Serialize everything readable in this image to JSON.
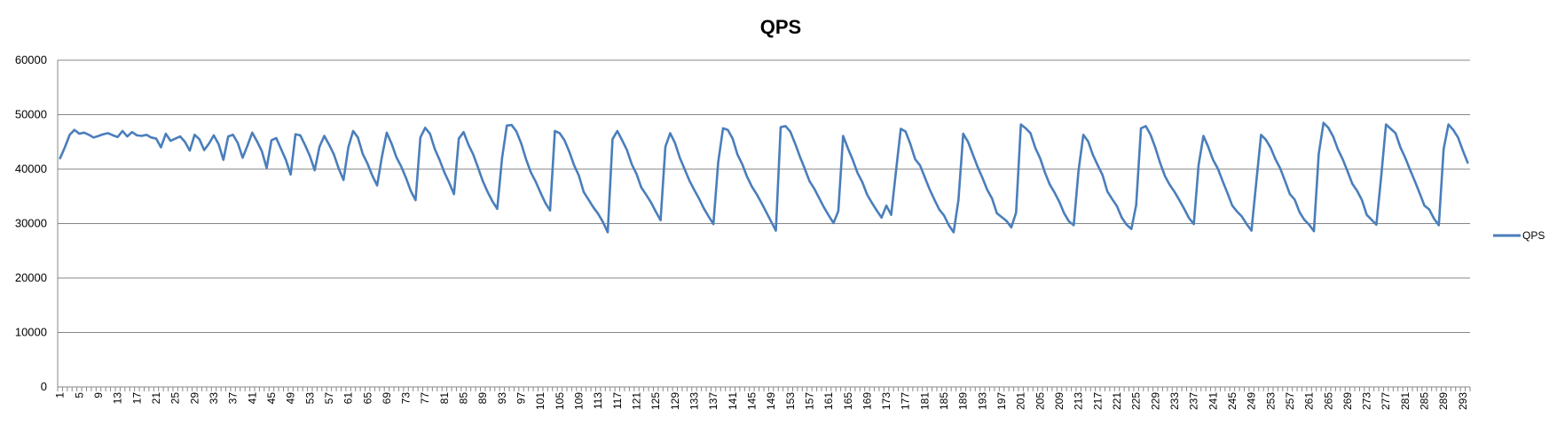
{
  "chart_data": {
    "type": "line",
    "title": "QPS",
    "xlabel": "",
    "ylabel": "",
    "ylim": [
      0,
      60000
    ],
    "yticks": [
      0,
      10000,
      20000,
      30000,
      40000,
      50000,
      60000
    ],
    "x_range": [
      1,
      294
    ],
    "x_tick_labels_every": 4,
    "grid": true,
    "legend_position": "right",
    "series": [
      {
        "name": "QPS",
        "color": "#4a7ebb",
        "x": [
          1,
          2,
          3,
          4,
          5,
          6,
          7,
          8,
          9,
          10,
          11,
          12,
          13,
          14,
          15,
          16,
          17,
          18,
          19,
          20,
          21,
          22,
          23,
          24,
          25,
          26,
          27,
          28,
          29,
          30,
          31,
          32,
          33,
          34,
          35,
          36,
          37,
          38,
          39,
          40,
          41,
          42,
          43,
          44,
          45,
          46,
          47,
          48,
          49,
          50,
          51,
          52,
          53,
          54,
          55,
          56,
          57,
          58,
          59,
          60,
          61,
          62,
          63,
          64,
          65,
          66,
          67,
          68,
          69,
          70,
          71,
          72,
          73,
          74,
          75,
          76,
          77,
          78,
          79,
          80,
          81,
          82,
          83,
          84,
          85,
          86,
          87,
          88,
          89,
          90,
          91,
          92,
          93,
          94,
          95,
          96,
          97,
          98,
          99,
          100,
          101,
          102,
          103,
          104,
          105,
          106,
          107,
          108,
          109,
          110,
          111,
          112,
          113,
          114,
          115,
          116,
          117,
          118,
          119,
          120,
          121,
          122,
          123,
          124,
          125,
          126,
          127,
          128,
          129,
          130,
          131,
          132,
          133,
          134,
          135,
          136,
          137,
          138,
          139,
          140,
          141,
          142,
          143,
          144,
          145,
          146,
          147,
          148,
          149,
          150,
          151,
          152,
          153,
          154,
          155,
          156,
          157,
          158,
          159,
          160,
          161,
          162,
          163,
          164,
          165,
          166,
          167,
          168,
          169,
          170,
          171,
          172,
          173,
          174,
          175,
          176,
          177,
          178,
          179,
          180,
          181,
          182,
          183,
          184,
          185,
          186,
          187,
          188,
          189,
          190,
          191,
          192,
          193,
          194,
          195,
          196,
          197,
          198,
          199,
          200,
          201,
          202,
          203,
          204,
          205,
          206,
          207,
          208,
          209,
          210,
          211,
          212,
          213,
          214,
          215,
          216,
          217,
          218,
          219,
          220,
          221,
          222,
          223,
          224,
          225,
          226,
          227,
          228,
          229,
          230,
          231,
          232,
          233,
          234,
          235,
          236,
          237,
          238,
          239,
          240,
          241,
          242,
          243,
          244,
          245,
          246,
          247,
          248,
          249,
          250,
          251,
          252,
          253,
          254,
          255,
          256,
          257,
          258,
          259,
          260,
          261,
          262,
          263,
          264,
          265,
          266,
          267,
          268,
          269,
          270,
          271,
          272,
          273,
          274,
          275,
          276,
          277,
          278,
          279,
          280,
          281,
          282,
          283,
          284,
          285,
          286,
          287,
          288,
          289,
          290,
          291,
          292,
          293,
          294
        ],
        "values": [
          42000,
          44000,
          46300,
          47200,
          46500,
          46700,
          46300,
          45800,
          46100,
          46400,
          46600,
          46200,
          45900,
          47000,
          46000,
          46800,
          46200,
          46100,
          46300,
          45800,
          45600,
          44000,
          46500,
          45200,
          45600,
          46000,
          45000,
          43400,
          46300,
          45500,
          43500,
          44700,
          46200,
          44600,
          41700,
          46000,
          46300,
          44800,
          42100,
          44300,
          46700,
          45100,
          43300,
          40200,
          45300,
          45700,
          43700,
          41700,
          39000,
          46400,
          46200,
          44400,
          42400,
          39800,
          44100,
          46100,
          44500,
          42700,
          40100,
          38000,
          44000,
          47000,
          45800,
          42800,
          41000,
          38800,
          37000,
          42300,
          46700,
          44700,
          42200,
          40500,
          38400,
          36000,
          34300,
          45800,
          47600,
          46500,
          43700,
          41700,
          39400,
          37500,
          35400,
          45600,
          46800,
          44500,
          42700,
          40300,
          37800,
          35800,
          34100,
          32700,
          42000,
          48000,
          48100,
          46900,
          44700,
          41800,
          39400,
          37700,
          35700,
          33800,
          32400,
          47000,
          46600,
          45300,
          43200,
          40700,
          38800,
          35800,
          34400,
          33000,
          31800,
          30300,
          28400,
          45500,
          47000,
          45300,
          43500,
          40900,
          39100,
          36600,
          35300,
          33900,
          32200,
          30600,
          44100,
          46600,
          44800,
          42100,
          40000,
          37900,
          36200,
          34600,
          32800,
          31300,
          29900,
          41300,
          47500,
          47200,
          45600,
          42700,
          40900,
          38600,
          36800,
          35400,
          33800,
          32100,
          30400,
          28700,
          47700,
          47900,
          46900,
          44700,
          42300,
          40100,
          37800,
          36400,
          34700,
          33000,
          31500,
          30100,
          32300,
          46100,
          43800,
          41700,
          39300,
          37600,
          35300,
          33800,
          32400,
          31100,
          33300,
          31600,
          39600,
          47400,
          46900,
          44600,
          41800,
          40700,
          38500,
          36300,
          34400,
          32600,
          31500,
          29700,
          28400,
          34300,
          46500,
          45000,
          42700,
          40400,
          38400,
          36200,
          34600,
          31900,
          31200,
          30500,
          29300,
          32000,
          48200,
          47500,
          46600,
          43900,
          42000,
          39400,
          37200,
          35700,
          34000,
          31900,
          30400,
          29700,
          39700,
          46300,
          45100,
          42600,
          40700,
          38900,
          35900,
          34500,
          33200,
          31100,
          29800,
          29000,
          33400,
          47500,
          47900,
          46300,
          43900,
          41100,
          38700,
          37100,
          35800,
          34300,
          32700,
          31000,
          29900,
          40800,
          46100,
          44100,
          41700,
          40100,
          37800,
          35600,
          33300,
          32200,
          31300,
          29900,
          28700,
          37600,
          46300,
          45400,
          43900,
          41800,
          40100,
          37800,
          35400,
          34400,
          32100,
          30700,
          29800,
          28600,
          42800,
          48500,
          47600,
          46000,
          43600,
          41800,
          39600,
          37300,
          36000,
          34300,
          31600,
          30700,
          29800,
          38600,
          48200,
          47400,
          46600,
          44000,
          42100,
          39900,
          37800,
          35600,
          33300,
          32600,
          30900,
          29700,
          43700,
          48200,
          47200,
          45800,
          43400,
          41200
        ]
      }
    ]
  }
}
